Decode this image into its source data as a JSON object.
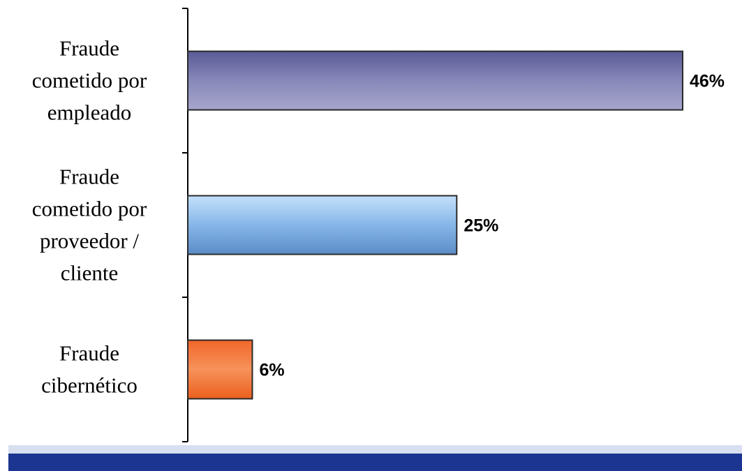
{
  "chart_data": {
    "type": "bar",
    "orientation": "horizontal",
    "categories": [
      [
        "Fraude",
        "cometido por",
        "empleado"
      ],
      [
        "Fraude",
        "cometido por",
        "proveedor /",
        "cliente"
      ],
      [
        "Fraude",
        "cibernético"
      ]
    ],
    "values": [
      46,
      25,
      6
    ],
    "data_labels": [
      "46%",
      "25%",
      "6%"
    ],
    "bar_colors": [
      "#8686b8",
      "#8ab8ea",
      "#f48a48"
    ],
    "xlim": [
      0,
      46
    ],
    "grid": false,
    "legend": "none"
  },
  "footer": {
    "band_color": "#1b3590",
    "accent_color": "#d8dff0"
  }
}
